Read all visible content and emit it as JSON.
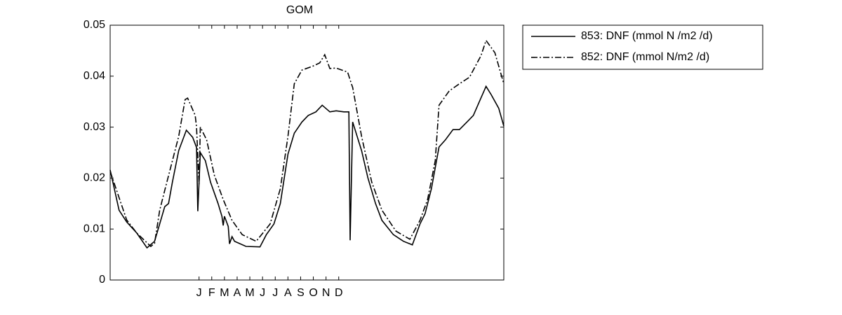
{
  "chart_data": {
    "type": "line",
    "title": "GOM",
    "xlim": [
      0,
      31
    ],
    "xticks": [
      {
        "value": 7,
        "label": "J"
      },
      {
        "value": 8,
        "label": "F"
      },
      {
        "value": 9,
        "label": "M"
      },
      {
        "value": 10,
        "label": "A"
      },
      {
        "value": 11,
        "label": "M"
      },
      {
        "value": 12,
        "label": "J"
      },
      {
        "value": 13,
        "label": "J"
      },
      {
        "value": 14,
        "label": "A"
      },
      {
        "value": 15,
        "label": "S"
      },
      {
        "value": 16,
        "label": "O"
      },
      {
        "value": 17,
        "label": "N"
      },
      {
        "value": 18,
        "label": "D"
      }
    ],
    "ylim": [
      0,
      0.05
    ],
    "yticks": [
      0,
      0.01,
      0.02,
      0.03,
      0.04,
      0.05
    ],
    "legend": "outside-top-right",
    "series": [
      {
        "name": "853: DNF (mmol N /m2 /d)",
        "color": "#000000",
        "dash": "solid",
        "x": [
          0,
          0.7,
          1.3,
          2.1,
          2.9,
          3.5,
          3.9,
          4.3,
          4.6,
          4.9,
          5.4,
          6.0,
          6.5,
          6.8,
          6.9,
          7.1,
          7.5,
          7.9,
          8.5,
          8.8,
          8.9,
          9.0,
          9.3,
          9.4,
          9.6,
          9.8,
          10.7,
          11.8,
          12.3,
          12.9,
          13.4,
          14.0,
          14.5,
          15.1,
          15.6,
          16.2,
          16.7,
          17.3,
          17.8,
          18.4,
          18.8,
          18.9,
          19.1,
          19.8,
          20.3,
          20.9,
          21.4,
          22.3,
          23.1,
          23.8,
          24.4,
          24.8,
          25.3,
          25.9,
          26.4,
          27.0,
          27.5,
          28.1,
          28.6,
          29.2,
          29.6,
          30.0,
          30.6,
          31.0
        ],
        "values": [
          0.0216,
          0.0137,
          0.0114,
          0.0092,
          0.0063,
          0.0076,
          0.011,
          0.0144,
          0.015,
          0.0192,
          0.0254,
          0.0294,
          0.028,
          0.026,
          0.0135,
          0.025,
          0.0234,
          0.0192,
          0.015,
          0.0125,
          0.0107,
          0.0125,
          0.0105,
          0.0071,
          0.0085,
          0.0076,
          0.0066,
          0.0065,
          0.0089,
          0.011,
          0.015,
          0.0247,
          0.0288,
          0.031,
          0.0323,
          0.033,
          0.0343,
          0.033,
          0.0332,
          0.033,
          0.033,
          0.0078,
          0.031,
          0.0254,
          0.02,
          0.015,
          0.0117,
          0.0089,
          0.0076,
          0.0069,
          0.011,
          0.013,
          0.0179,
          0.0261,
          0.0275,
          0.0295,
          0.0295,
          0.031,
          0.0323,
          0.0357,
          0.038,
          0.0364,
          0.0337,
          0.0302
        ]
      },
      {
        "name": "852: DNF (mmol N/m2 /d)",
        "color": "#000000",
        "dash": "dashdot",
        "x": [
          0,
          1.3,
          2.1,
          3.2,
          3.5,
          3.9,
          4.3,
          4.9,
          5.4,
          5.9,
          6.1,
          6.7,
          6.8,
          7.0,
          7.1,
          7.6,
          8.2,
          8.9,
          9.6,
          10.4,
          11.5,
          12.6,
          13.4,
          14.0,
          14.5,
          15.1,
          15.9,
          16.5,
          16.9,
          17.3,
          17.8,
          18.7,
          19.0,
          19.1,
          19.8,
          20.6,
          21.4,
          22.5,
          23.6,
          24.4,
          25.0,
          25.6,
          25.9,
          26.7,
          27.5,
          28.3,
          29.2,
          29.6,
          30.3,
          31.0
        ],
        "values": [
          0.0213,
          0.0118,
          0.0092,
          0.0066,
          0.0072,
          0.0137,
          0.0176,
          0.0234,
          0.0282,
          0.0354,
          0.0357,
          0.0323,
          0.03,
          0.0188,
          0.03,
          0.0275,
          0.0206,
          0.0158,
          0.0117,
          0.0089,
          0.0076,
          0.011,
          0.0179,
          0.0282,
          0.0385,
          0.0412,
          0.0419,
          0.0426,
          0.0442,
          0.0415,
          0.0416,
          0.0408,
          0.0385,
          0.0378,
          0.0282,
          0.0192,
          0.0137,
          0.0096,
          0.008,
          0.0117,
          0.0158,
          0.0234,
          0.0343,
          0.0371,
          0.0385,
          0.0398,
          0.044,
          0.047,
          0.0446,
          0.0385
        ]
      }
    ]
  }
}
